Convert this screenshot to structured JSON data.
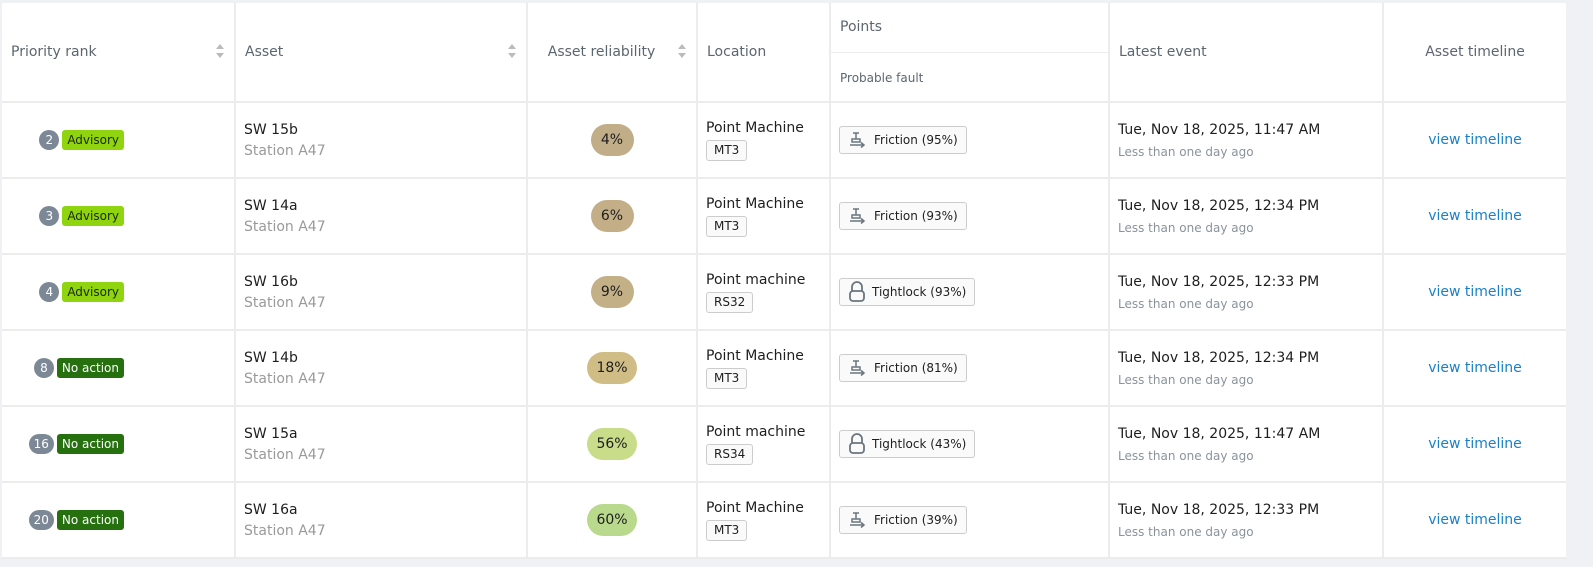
{
  "headers": {
    "priority": "Priority rank",
    "asset": "Asset",
    "reliability": "Asset reliability",
    "location": "Location",
    "points": "Points",
    "probable_fault": "Probable fault",
    "latest_event": "Latest event",
    "timeline": "Asset timeline"
  },
  "colors": {
    "advisory": "#8fd40f",
    "no_action": "#267010",
    "rank_badge": "#7d8896",
    "link": "#1a80c8"
  },
  "rows": [
    {
      "rank": "2",
      "status": "Advisory",
      "status_type": "advisory",
      "asset": "SW 15b",
      "station": "Station A47",
      "reliability": "4%",
      "reliability_color": "#c1ad87",
      "location": "Point Machine",
      "model": "MT3",
      "fault_icon": "friction-icon",
      "fault": "Friction (95%)",
      "event": "Tue, Nov 18, 2025, 11:47 AM",
      "ago": "Less than one day ago",
      "link": "view timeline"
    },
    {
      "rank": "3",
      "status": "Advisory",
      "status_type": "advisory",
      "asset": "SW 14a",
      "station": "Station A47",
      "reliability": "6%",
      "reliability_color": "#c3ae87",
      "location": "Point Machine",
      "model": "MT3",
      "fault_icon": "friction-icon",
      "fault": "Friction (93%)",
      "event": "Tue, Nov 18, 2025, 12:34 PM",
      "ago": "Less than one day ago",
      "link": "view timeline"
    },
    {
      "rank": "4",
      "status": "Advisory",
      "status_type": "advisory",
      "asset": "SW 16b",
      "station": "Station A47",
      "reliability": "9%",
      "reliability_color": "#c4b087",
      "location": "Point machine",
      "model": "RS32",
      "fault_icon": "lock-icon",
      "fault": "Tightlock (93%)",
      "event": "Tue, Nov 18, 2025, 12:33 PM",
      "ago": "Less than one day ago",
      "link": "view timeline"
    },
    {
      "rank": "8",
      "status": "No action",
      "status_type": "no_action",
      "asset": "SW 14b",
      "station": "Station A47",
      "reliability": "18%",
      "reliability_color": "#d0bd86",
      "location": "Point Machine",
      "model": "MT3",
      "fault_icon": "friction-icon",
      "fault": "Friction (81%)",
      "event": "Tue, Nov 18, 2025, 12:34 PM",
      "ago": "Less than one day ago",
      "link": "view timeline"
    },
    {
      "rank": "16",
      "status": "No action",
      "status_type": "no_action",
      "asset": "SW 15a",
      "station": "Station A47",
      "reliability": "56%",
      "reliability_color": "#c8dc8a",
      "location": "Point machine",
      "model": "RS34",
      "fault_icon": "lock-icon",
      "fault": "Tightlock (43%)",
      "event": "Tue, Nov 18, 2025, 11:47 AM",
      "ago": "Less than one day ago",
      "link": "view timeline"
    },
    {
      "rank": "20",
      "status": "No action",
      "status_type": "no_action",
      "asset": "SW 16a",
      "station": "Station A47",
      "reliability": "60%",
      "reliability_color": "#b9da8c",
      "location": "Point Machine",
      "model": "MT3",
      "fault_icon": "friction-icon",
      "fault": "Friction (39%)",
      "event": "Tue, Nov 18, 2025, 12:33 PM",
      "ago": "Less than one day ago",
      "link": "view timeline"
    }
  ]
}
